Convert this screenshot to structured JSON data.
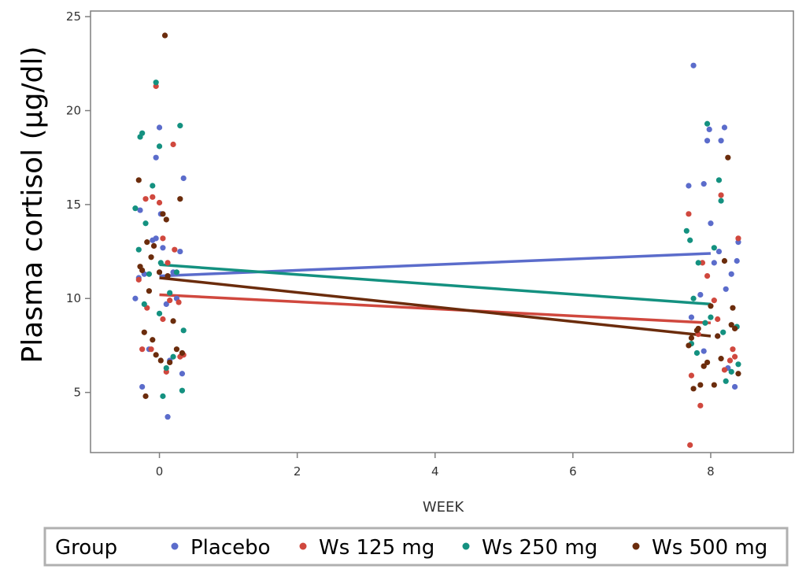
{
  "chart_data": {
    "type": "scatter",
    "xlabel": "WEEK",
    "ylabel": "Plasma cortisol (µg/dl)",
    "xlim": [
      -1,
      9.2
    ],
    "ylim": [
      1.8,
      25.3
    ],
    "xticks": [
      0,
      2,
      4,
      6,
      8
    ],
    "yticks": [
      5,
      10,
      15,
      20,
      25
    ],
    "grid": false,
    "legend": {
      "title": "Group",
      "placement": "bottom"
    },
    "series": [
      {
        "name": "Placebo",
        "color": "#5b6ccb",
        "fit": [
          [
            0,
            11.2
          ],
          [
            8,
            12.4
          ]
        ],
        "points": [
          [
            -0.35,
            10.0
          ],
          [
            -0.3,
            11.1
          ],
          [
            -0.28,
            14.7
          ],
          [
            -0.25,
            5.3
          ],
          [
            -0.22,
            11.3
          ],
          [
            -0.15,
            7.3
          ],
          [
            -0.1,
            13.1
          ],
          [
            -0.05,
            17.5
          ],
          [
            0.0,
            19.1
          ],
          [
            0.02,
            14.5
          ],
          [
            0.05,
            12.7
          ],
          [
            0.1,
            9.7
          ],
          [
            0.12,
            3.7
          ],
          [
            0.15,
            6.7
          ],
          [
            0.2,
            11.4
          ],
          [
            0.25,
            10.0
          ],
          [
            0.3,
            12.5
          ],
          [
            0.33,
            6.0
          ],
          [
            0.35,
            16.4
          ],
          [
            -0.05,
            13.2
          ],
          [
            7.75,
            22.4
          ],
          [
            7.68,
            16.0
          ],
          [
            7.9,
            16.1
          ],
          [
            7.95,
            18.4
          ],
          [
            7.98,
            19.0
          ],
          [
            8.15,
            18.4
          ],
          [
            8.2,
            19.1
          ],
          [
            8.12,
            12.5
          ],
          [
            8.05,
            11.9
          ],
          [
            7.85,
            10.2
          ],
          [
            7.72,
            9.0
          ],
          [
            8.3,
            11.3
          ],
          [
            8.38,
            12.0
          ],
          [
            8.4,
            13.0
          ],
          [
            8.35,
            5.3
          ],
          [
            8.25,
            6.3
          ],
          [
            8.1,
            8.0
          ],
          [
            7.9,
            7.2
          ],
          [
            8.0,
            14.0
          ],
          [
            8.22,
            10.5
          ]
        ]
      },
      {
        "name": "Ws 125 mg",
        "color": "#d0483e",
        "fit": [
          [
            0,
            10.2
          ],
          [
            8,
            8.7
          ]
        ],
        "points": [
          [
            -0.05,
            21.3
          ],
          [
            0.2,
            18.2
          ],
          [
            -0.3,
            11.0
          ],
          [
            -0.25,
            7.3
          ],
          [
            -0.2,
            15.3
          ],
          [
            -0.1,
            15.4
          ],
          [
            0.0,
            15.1
          ],
          [
            0.05,
            8.9
          ],
          [
            0.1,
            6.1
          ],
          [
            0.15,
            9.9
          ],
          [
            0.22,
            12.6
          ],
          [
            0.28,
            9.8
          ],
          [
            0.3,
            6.9
          ],
          [
            -0.18,
            9.5
          ],
          [
            0.05,
            13.2
          ],
          [
            -0.12,
            7.3
          ],
          [
            0.12,
            11.9
          ],
          [
            0.35,
            7.0
          ],
          [
            7.68,
            14.5
          ],
          [
            7.72,
            5.9
          ],
          [
            7.7,
            2.2
          ],
          [
            7.82,
            8.1
          ],
          [
            7.88,
            11.9
          ],
          [
            7.95,
            11.2
          ],
          [
            8.05,
            9.9
          ],
          [
            8.15,
            15.5
          ],
          [
            8.2,
            6.2
          ],
          [
            8.28,
            6.7
          ],
          [
            8.35,
            6.9
          ],
          [
            8.4,
            13.2
          ],
          [
            7.85,
            4.3
          ],
          [
            7.9,
            6.4
          ],
          [
            8.1,
            8.9
          ],
          [
            8.32,
            7.3
          ]
        ]
      },
      {
        "name": "Ws 250 mg",
        "color": "#149180",
        "fit": [
          [
            0,
            11.8
          ],
          [
            8,
            9.7
          ]
        ],
        "points": [
          [
            -0.35,
            14.8
          ],
          [
            -0.3,
            12.6
          ],
          [
            -0.28,
            18.6
          ],
          [
            -0.25,
            18.8
          ],
          [
            -0.22,
            9.7
          ],
          [
            -0.2,
            14.0
          ],
          [
            -0.1,
            16.0
          ],
          [
            -0.05,
            21.5
          ],
          [
            0.0,
            18.1
          ],
          [
            0.02,
            11.9
          ],
          [
            0.05,
            4.8
          ],
          [
            0.1,
            6.3
          ],
          [
            0.15,
            10.3
          ],
          [
            0.25,
            11.4
          ],
          [
            0.3,
            19.2
          ],
          [
            0.33,
            5.1
          ],
          [
            0.35,
            8.3
          ],
          [
            -0.15,
            11.3
          ],
          [
            0.0,
            9.2
          ],
          [
            0.2,
            6.9
          ],
          [
            7.65,
            13.6
          ],
          [
            7.7,
            13.1
          ],
          [
            7.72,
            7.6
          ],
          [
            7.75,
            10.0
          ],
          [
            7.8,
            7.1
          ],
          [
            7.95,
            19.3
          ],
          [
            8.0,
            9.0
          ],
          [
            8.05,
            12.7
          ],
          [
            8.12,
            16.3
          ],
          [
            8.15,
            15.2
          ],
          [
            8.22,
            5.6
          ],
          [
            8.3,
            6.1
          ],
          [
            8.38,
            8.5
          ],
          [
            8.4,
            6.5
          ],
          [
            7.82,
            11.9
          ],
          [
            7.92,
            8.7
          ],
          [
            8.18,
            8.2
          ]
        ]
      },
      {
        "name": "Ws 500 mg",
        "color": "#6b2c0c",
        "fit": [
          [
            0,
            11.1
          ],
          [
            8,
            8.0
          ]
        ],
        "points": [
          [
            0.08,
            24.0
          ],
          [
            -0.3,
            16.3
          ],
          [
            -0.28,
            11.7
          ],
          [
            -0.25,
            11.5
          ],
          [
            -0.22,
            8.2
          ],
          [
            -0.2,
            4.8
          ],
          [
            -0.18,
            13.0
          ],
          [
            -0.15,
            10.4
          ],
          [
            -0.12,
            12.2
          ],
          [
            -0.1,
            7.8
          ],
          [
            -0.05,
            7.0
          ],
          [
            0.0,
            11.4
          ],
          [
            0.02,
            6.7
          ],
          [
            0.05,
            14.5
          ],
          [
            0.1,
            14.2
          ],
          [
            0.15,
            6.6
          ],
          [
            0.2,
            8.8
          ],
          [
            0.25,
            7.3
          ],
          [
            0.3,
            15.3
          ],
          [
            0.33,
            7.1
          ],
          [
            -0.08,
            12.8
          ],
          [
            0.12,
            11.2
          ],
          [
            7.68,
            7.5
          ],
          [
            7.72,
            7.9
          ],
          [
            7.75,
            5.2
          ],
          [
            7.8,
            8.3
          ],
          [
            7.85,
            5.4
          ],
          [
            7.9,
            6.4
          ],
          [
            7.95,
            6.6
          ],
          [
            8.0,
            9.6
          ],
          [
            8.05,
            5.4
          ],
          [
            8.1,
            8.0
          ],
          [
            8.2,
            12.0
          ],
          [
            8.25,
            17.5
          ],
          [
            8.3,
            8.6
          ],
          [
            8.32,
            9.5
          ],
          [
            8.35,
            8.4
          ],
          [
            8.4,
            6.0
          ],
          [
            7.82,
            8.4
          ],
          [
            8.15,
            6.8
          ]
        ]
      }
    ]
  }
}
